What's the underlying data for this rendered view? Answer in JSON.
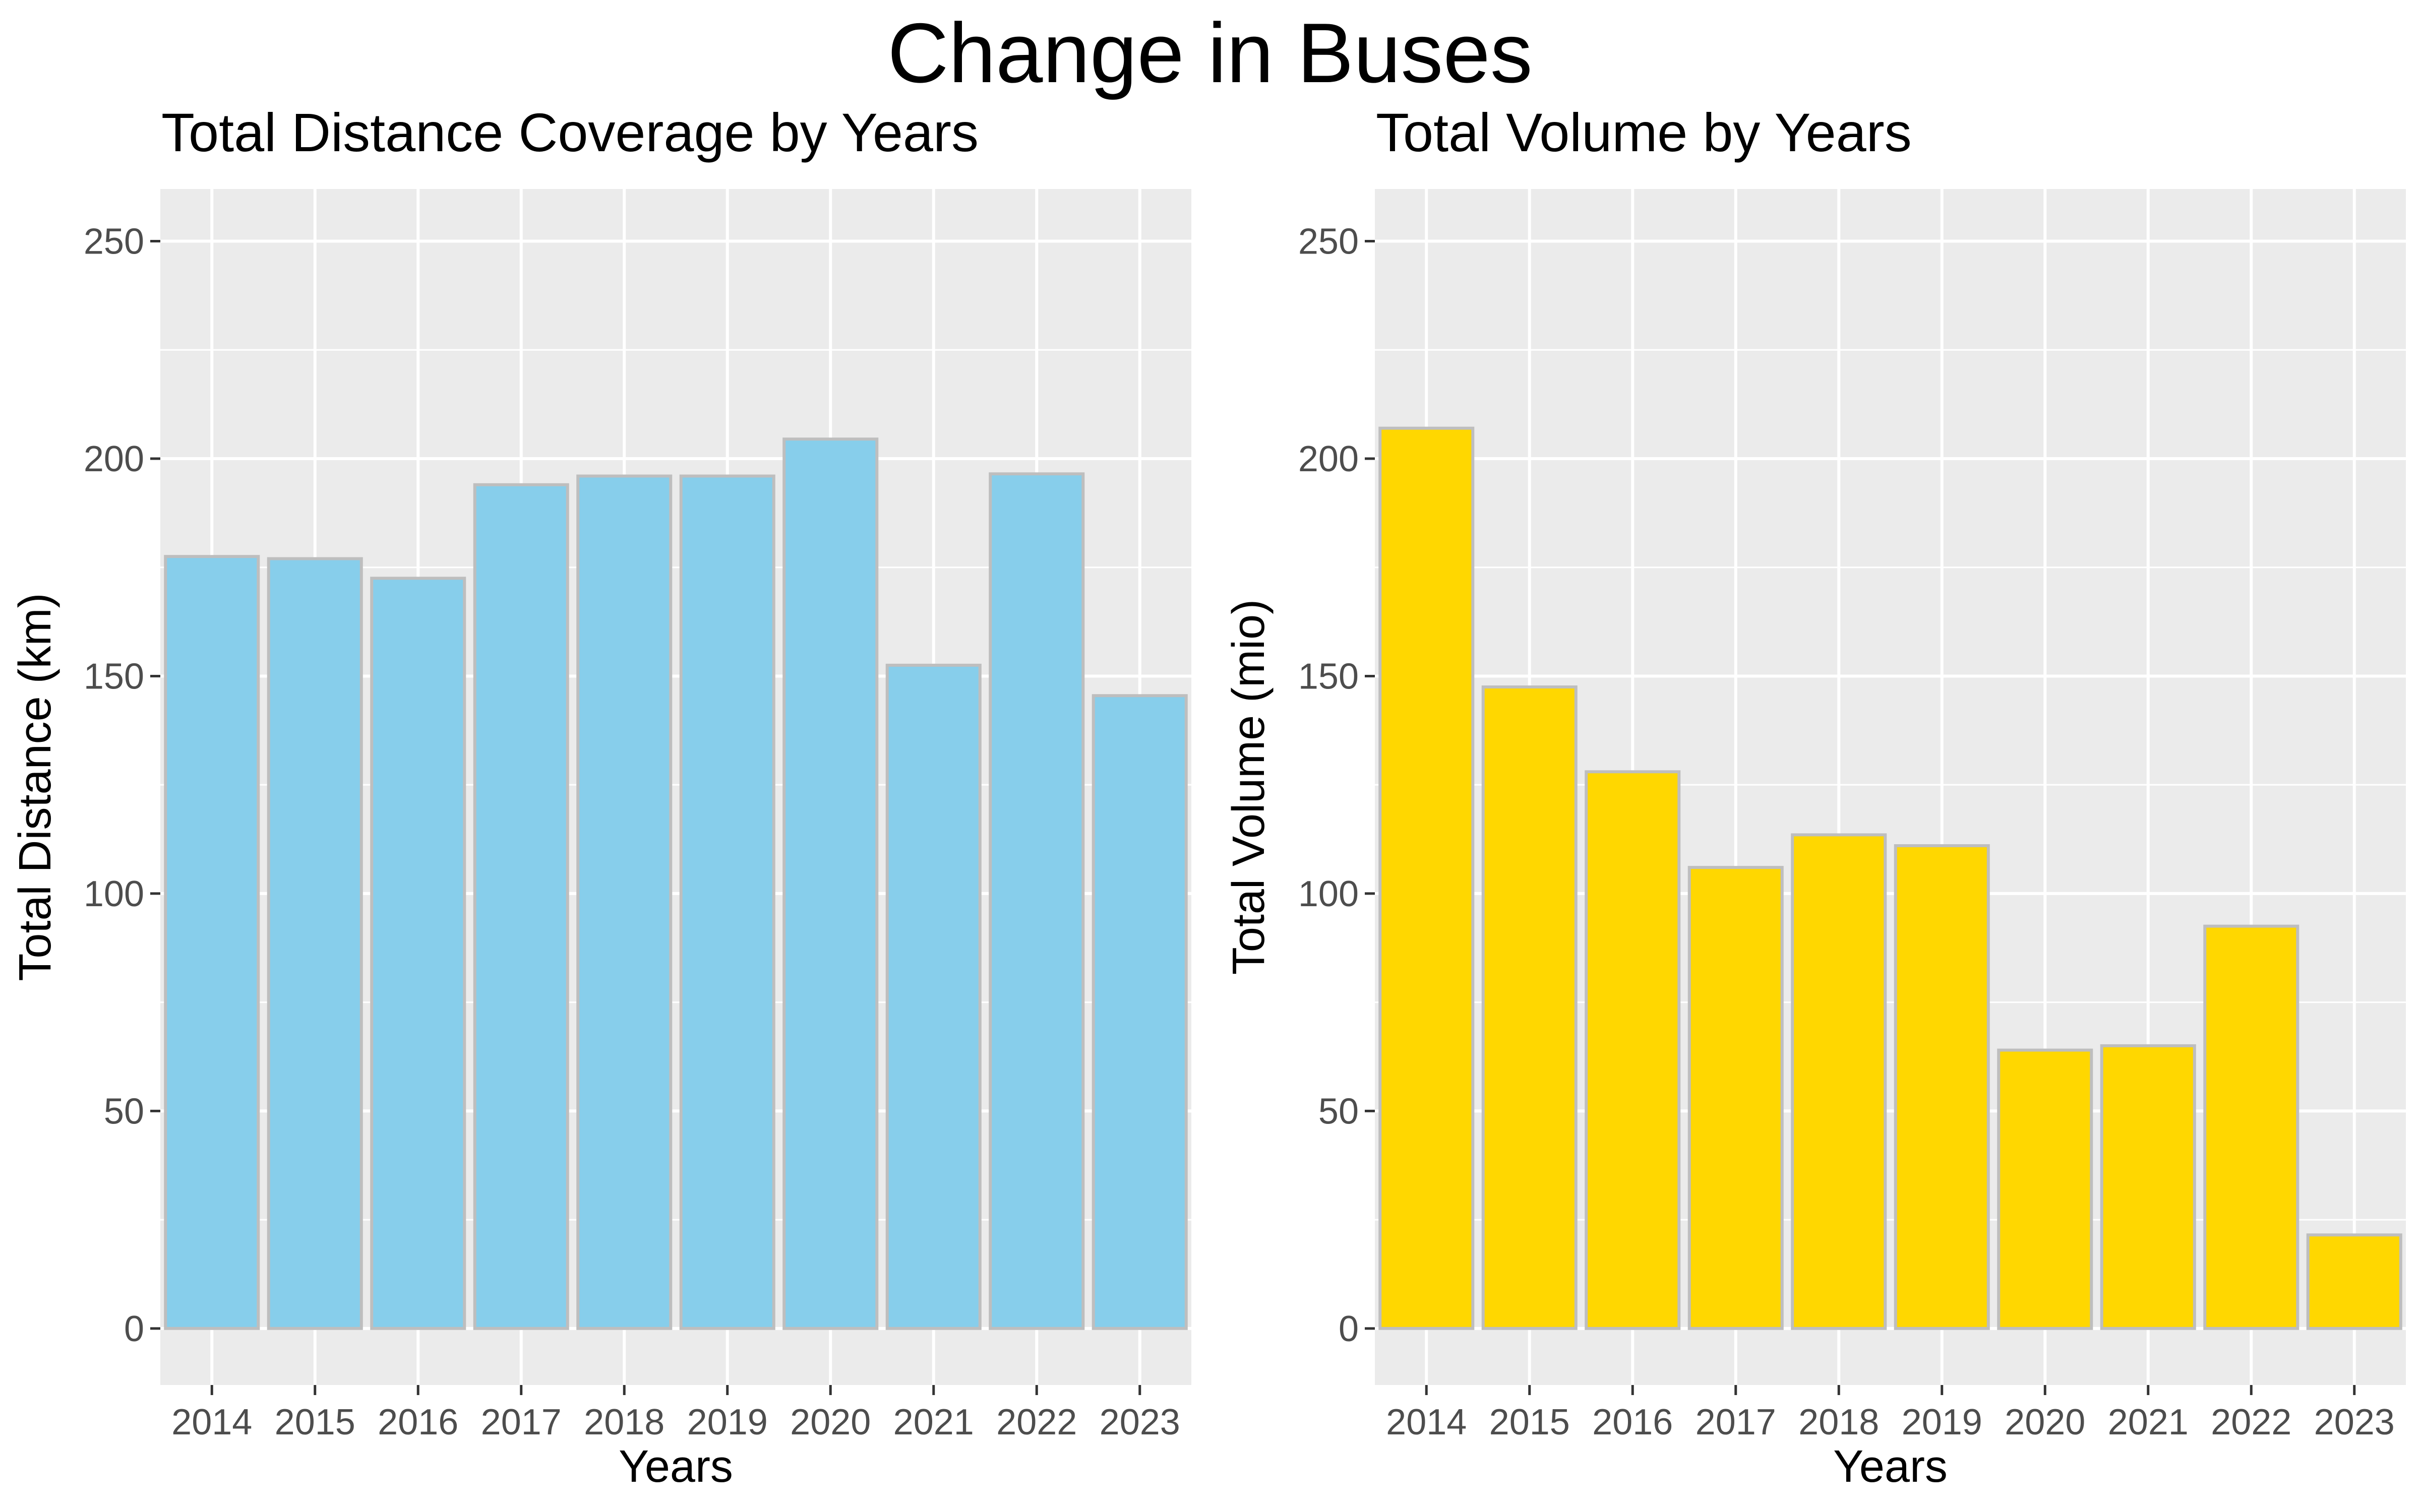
{
  "title": "Change in Buses",
  "chart_data": [
    {
      "type": "bar",
      "title": "Total Distance Coverage by Years",
      "xlabel": "Years",
      "ylabel": "Total Distance (km)",
      "categories": [
        "2014",
        "2015",
        "2016",
        "2017",
        "2018",
        "2019",
        "2020",
        "2021",
        "2022",
        "2023"
      ],
      "values": [
        177.5,
        177,
        172.5,
        194,
        196,
        196,
        204.5,
        152.5,
        196.5,
        145.5
      ],
      "ylim": [
        -13,
        262
      ],
      "yticks": [
        0,
        50,
        100,
        150,
        200,
        250
      ],
      "grid": true,
      "legend": "none",
      "fill_color": "#87ceeb",
      "outline_color": "#bebebe"
    },
    {
      "type": "bar",
      "title": "Total Volume by Years",
      "xlabel": "Years",
      "ylabel": "Total Volume (mio)",
      "categories": [
        "2014",
        "2015",
        "2016",
        "2017",
        "2018",
        "2019",
        "2020",
        "2021",
        "2022",
        "2023"
      ],
      "values": [
        207,
        147.5,
        128,
        106,
        113.5,
        111,
        64,
        65,
        92.5,
        21.5
      ],
      "ylim": [
        -13,
        262
      ],
      "yticks": [
        0,
        50,
        100,
        150,
        200,
        250
      ],
      "grid": true,
      "legend": "none",
      "fill_color": "#ffd700",
      "outline_color": "#bebebe"
    }
  ]
}
